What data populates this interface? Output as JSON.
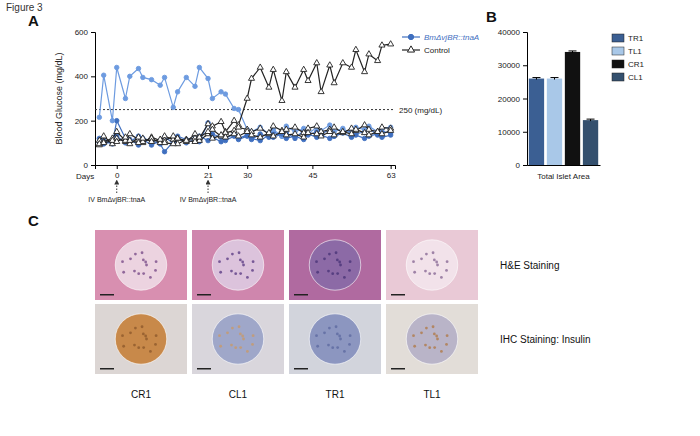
{
  "figure": {
    "title": "Figure 3",
    "panel_labels": [
      "A",
      "B",
      "C"
    ]
  },
  "chart_data": [
    {
      "type": "line",
      "x_label": "Days",
      "y_label": "Blood Glucose (mg/dL)",
      "xlim": [
        -5,
        64
      ],
      "xticks": [
        0,
        21,
        30,
        45,
        63
      ],
      "ylim": [
        0,
        600
      ],
      "yticks": [
        0,
        200,
        400,
        600
      ],
      "grid": false,
      "legend": "right",
      "threshold": {
        "value": 250,
        "label": "250 (mg/dL)"
      },
      "annotations": [
        {
          "x": 0,
          "text": "IV BmΔvjBR::tnaA"
        },
        {
          "x": 21,
          "text": "IV BmΔvjBR::tnaA"
        }
      ],
      "x": [
        -4,
        -3,
        -1,
        0,
        2,
        3,
        5,
        6,
        8,
        10,
        11,
        13,
        14,
        16,
        18,
        19,
        21,
        22,
        24,
        25,
        27,
        28,
        30,
        31,
        33,
        35,
        36,
        38,
        39,
        41,
        43,
        44,
        46,
        47,
        49,
        50,
        52,
        54,
        55,
        57,
        58,
        60,
        61,
        63
      ],
      "series": [
        {
          "name": "BmΔvjBR::tnaA",
          "color": "#3f6fbf",
          "marker": "circle",
          "line_style": "solid",
          "values": [
            100,
            110,
            95,
            200,
            120,
            105,
            130,
            115,
            90,
            110,
            125,
            100,
            130,
            115,
            120,
            105,
            190,
            140,
            125,
            110,
            130,
            120,
            135,
            115,
            140,
            125,
            150,
            130,
            145,
            120,
            155,
            135,
            150,
            140,
            160,
            130,
            145,
            155,
            140,
            150,
            165,
            135,
            150,
            145
          ]
        },
        {
          "name": "BmΔvjBR::tnaA",
          "color": "#6d9be0",
          "marker": "circle",
          "line_style": "solid",
          "values": [
            215,
            405,
            200,
            440,
            300,
            400,
            435,
            395,
            385,
            360,
            395,
            260,
            330,
            395,
            355,
            440,
            390,
            300,
            330,
            320,
            255,
            250,
            160,
            150,
            170,
            140,
            160,
            130,
            175,
            150,
            165,
            140,
            170,
            155,
            180,
            150,
            165,
            140,
            170,
            160,
            175,
            150,
            165,
            170
          ]
        },
        {
          "name": "BmΔvjBR::tnaA",
          "color": "#3f6fbf",
          "marker": "circle",
          "line_style": "solid",
          "values": [
            120,
            95,
            105,
            130,
            100,
            115,
            90,
            120,
            110,
            95,
            60,
            105,
            120,
            100,
            115,
            130,
            110,
            125,
            105,
            120,
            140,
            115,
            130,
            120,
            110,
            135,
            125,
            140,
            120,
            130,
            115,
            140,
            125,
            135,
            120,
            130,
            145,
            125,
            135,
            120,
            130,
            140,
            125,
            135
          ]
        },
        {
          "name": "Control",
          "color": "#222222",
          "marker": "triangle",
          "line_style": "solid",
          "values": [
            110,
            130,
            95,
            120,
            105,
            140,
            115,
            100,
            125,
            110,
            130,
            115,
            120,
            105,
            140,
            120,
            185,
            175,
            195,
            150,
            200,
            180,
            300,
            390,
            440,
            350,
            430,
            290,
            420,
            350,
            430,
            380,
            460,
            330,
            450,
            370,
            460,
            440,
            520,
            420,
            500,
            470,
            540,
            545
          ]
        },
        {
          "name": "Control",
          "color": "#222222",
          "marker": "triangle",
          "line_style": "solid",
          "values": [
            90,
            105,
            120,
            150,
            110,
            95,
            125,
            105,
            120,
            100,
            110,
            130,
            95,
            115,
            120,
            110,
            140,
            160,
            130,
            145,
            155,
            170,
            160,
            150,
            165,
            140,
            175,
            155,
            160,
            170,
            145,
            165,
            175,
            150,
            160,
            170,
            145,
            165,
            155,
            180,
            160,
            150,
            170,
            165
          ]
        },
        {
          "name": "Control",
          "color": "#222222",
          "marker": "triangle",
          "line_style": "solid",
          "values": [
            95,
            100,
            110,
            105,
            125,
            110,
            100,
            120,
            105,
            115,
            100,
            95,
            120,
            110,
            105,
            125,
            150,
            120,
            135,
            125,
            140,
            130,
            150,
            135,
            125,
            145,
            130,
            150,
            135,
            140,
            125,
            145,
            140,
            130,
            150,
            135,
            150,
            140,
            160,
            145,
            135,
            150,
            140,
            155
          ]
        }
      ]
    },
    {
      "type": "bar",
      "x_label": "Total Islet Area",
      "categories": [
        "TR1",
        "TL1",
        "CR1",
        "CL1"
      ],
      "values": [
        26000,
        26000,
        34000,
        13500
      ],
      "errors": [
        300,
        300,
        300,
        300
      ],
      "colors": [
        "#3b5f93",
        "#a9c8e8",
        "#111111",
        "#34506e"
      ],
      "ylim": [
        0,
        40000
      ],
      "yticks": [
        0,
        10000,
        20000,
        30000,
        40000
      ],
      "grid": false,
      "legend": "right",
      "tick_labels": "y"
    }
  ],
  "panel_c": {
    "row_labels": [
      "H&E Staining",
      "IHC Staining: Insulin"
    ],
    "column_labels": [
      "CR1",
      "CL1",
      "TR1",
      "TL1"
    ]
  }
}
